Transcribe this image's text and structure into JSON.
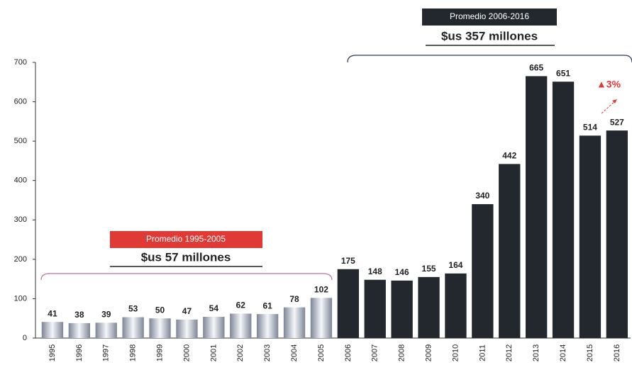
{
  "chart_data": {
    "type": "bar",
    "categories": [
      "1995",
      "1996",
      "1997",
      "1998",
      "1999",
      "2000",
      "2001",
      "2002",
      "2003",
      "2004",
      "2005",
      "2006",
      "2007",
      "2008",
      "2009",
      "2010",
      "2011",
      "2012",
      "2013",
      "2014",
      "2015",
      "2016"
    ],
    "values": [
      41,
      38,
      39,
      53,
      50,
      47,
      54,
      62,
      61,
      78,
      102,
      175,
      148,
      146,
      155,
      164,
      340,
      442,
      665,
      651,
      514,
      527
    ],
    "colors": [
      "#c9cfdc",
      "#c9cfdc",
      "#c9cfdc",
      "#c9cfdc",
      "#c9cfdc",
      "#c9cfdc",
      "#c9cfdc",
      "#c9cfdc",
      "#c9cfdc",
      "#c9cfdc",
      "#c9cfdc",
      "#23272e",
      "#23272e",
      "#23272e",
      "#23272e",
      "#23272e",
      "#23272e",
      "#23272e",
      "#23272e",
      "#23272e",
      "#23272e",
      "#23272e"
    ],
    "ylim": [
      0,
      700
    ],
    "yticks": [
      0,
      100,
      200,
      300,
      400,
      500,
      600,
      700
    ],
    "grid": false,
    "annotations": {
      "avg1_label": "Promedio 1995-2005",
      "avg1_value": "$us 57 millones",
      "avg2_label": "Promedio 2006-2016",
      "avg2_value": "$us 357 millones",
      "growth": "▲3%"
    }
  }
}
